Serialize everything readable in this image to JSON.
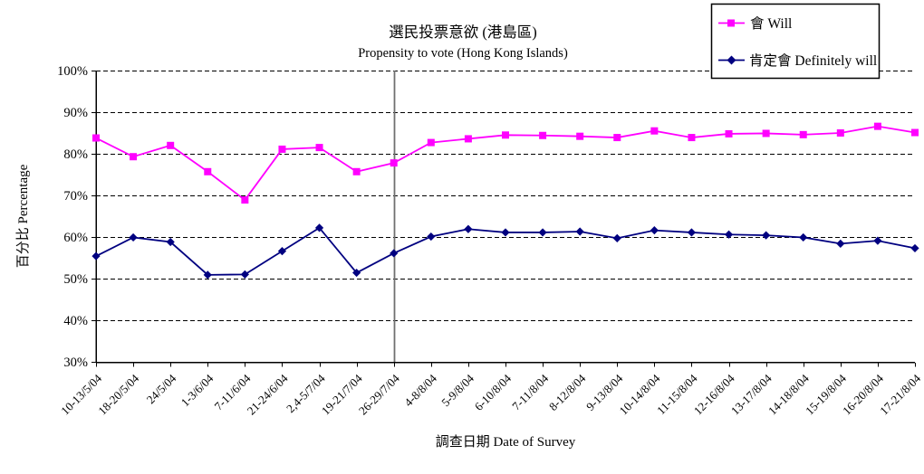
{
  "chart_data": {
    "type": "line",
    "title_zh": "選民投票意欲 (港島區)",
    "title_en": "Propensity to vote (Hong Kong Islands)",
    "xlabel": "調查日期 Date of Survey",
    "ylabel": "百分比 Percentage",
    "ylim": [
      30,
      100
    ],
    "ytick_step": 10,
    "ytick_suffix": "%",
    "grid": "horizontal-dashed",
    "legend_position": "top-right",
    "divider_at_category_index": 8,
    "divider_color": "#707070",
    "categories": [
      "10-13/5/04",
      "18-20/5/04",
      "24/5/04",
      "1-3/6/04",
      "7-11/6/04",
      "21-24/6/04",
      "2,4-5/7/04",
      "19-21/7/04",
      "26-29/7/04",
      "4-8/8/04",
      "5-9/8/04",
      "6-10/8/04",
      "7-11/8/04",
      "8-12/8/04",
      "9-13/8/04",
      "10-14/8/04",
      "11-15/8/04",
      "12-16/8/04",
      "13-17/8/04",
      "14-18/8/04",
      "15-19/8/04",
      "16-20/8/04",
      "17-21/8/04"
    ],
    "series": [
      {
        "name": "會 Will",
        "color": "#FF00FF",
        "marker": "square",
        "values": [
          83.8,
          79.3,
          82.0,
          75.7,
          68.9,
          81.1,
          81.5,
          75.7,
          77.8,
          82.7,
          83.6,
          84.5,
          84.4,
          84.2,
          83.9,
          85.5,
          83.9,
          84.8,
          84.9,
          84.6,
          85.0,
          86.6,
          85.1
        ]
      },
      {
        "name": "肯定會 Definitely will",
        "color": "#000080",
        "marker": "diamond",
        "values": [
          55.4,
          59.9,
          58.8,
          50.9,
          51.0,
          56.6,
          62.2,
          51.4,
          56.1,
          60.1,
          61.9,
          61.1,
          61.1,
          61.3,
          59.7,
          61.6,
          61.1,
          60.6,
          60.4,
          59.9,
          58.4,
          59.1,
          57.3
        ]
      }
    ]
  }
}
